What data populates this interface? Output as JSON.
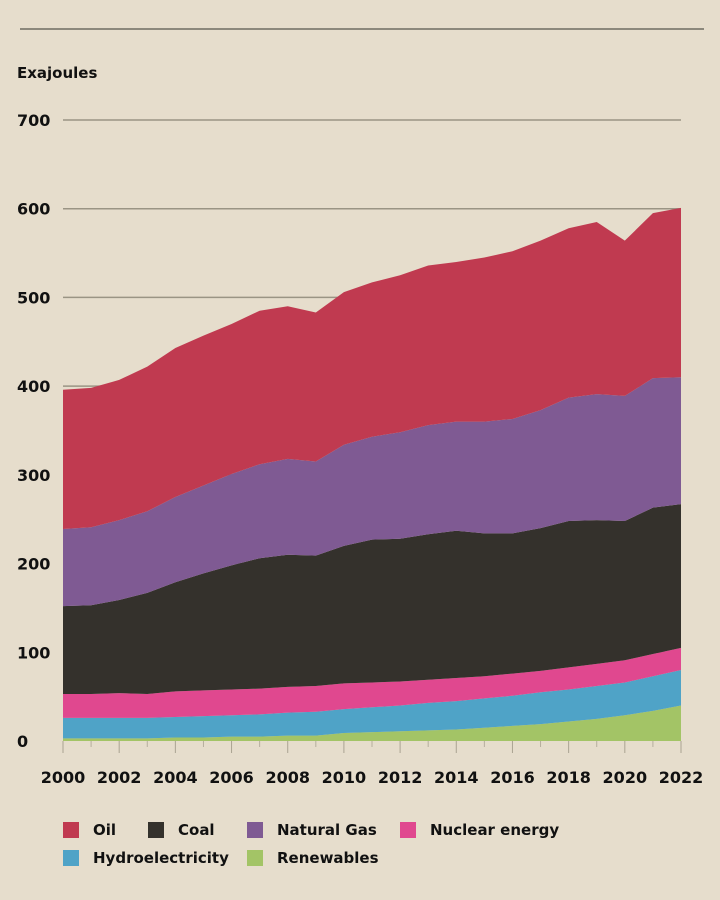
{
  "chart_data": {
    "type": "area",
    "stacked": true,
    "title": "",
    "xlabel": "",
    "ylabel": "Exajoules",
    "ylim": [
      0,
      700
    ],
    "yticks": [
      0,
      100,
      200,
      300,
      400,
      500,
      600,
      700
    ],
    "xticks": [
      2000,
      2002,
      2004,
      2006,
      2008,
      2010,
      2012,
      2014,
      2016,
      2018,
      2020,
      2022
    ],
    "grid": true,
    "legend_placement": "bottom",
    "x": [
      2000,
      2001,
      2002,
      2003,
      2004,
      2005,
      2006,
      2007,
      2008,
      2009,
      2010,
      2011,
      2012,
      2013,
      2014,
      2015,
      2016,
      2017,
      2018,
      2019,
      2020,
      2021,
      2022
    ],
    "series": [
      {
        "name": "Renewables",
        "color": "#a3c466",
        "values": [
          3,
          3,
          3,
          3,
          4,
          4,
          5,
          5,
          6,
          6,
          9,
          10,
          11,
          12,
          13,
          15,
          17,
          19,
          22,
          25,
          29,
          34,
          40
        ]
      },
      {
        "name": "Hydroelectricity",
        "color": "#4fa3c7",
        "values": [
          23,
          23,
          23,
          23,
          23,
          24,
          24,
          25,
          26,
          27,
          27,
          28,
          29,
          31,
          32,
          33,
          34,
          36,
          36,
          37,
          37,
          39,
          40
        ]
      },
      {
        "name": "Nuclear energy",
        "color": "#e0488f",
        "values": [
          27,
          27,
          28,
          27,
          29,
          29,
          29,
          29,
          29,
          29,
          29,
          28,
          27,
          26,
          26,
          25,
          25,
          24,
          25,
          25,
          25,
          25,
          25
        ]
      },
      {
        "name": "Coal",
        "color": "#34312c",
        "values": [
          99,
          100,
          105,
          114,
          123,
          132,
          140,
          147,
          149,
          147,
          155,
          161,
          161,
          164,
          166,
          161,
          158,
          161,
          165,
          162,
          157,
          165,
          162
        ]
      },
      {
        "name": "Natural Gas",
        "color": "#7f5a93",
        "values": [
          87,
          88,
          90,
          92,
          96,
          99,
          103,
          106,
          108,
          106,
          114,
          116,
          120,
          123,
          123,
          126,
          129,
          133,
          139,
          142,
          141,
          146,
          143
        ]
      },
      {
        "name": "Oil",
        "color": "#c03a50",
        "values": [
          157,
          157,
          158,
          163,
          168,
          169,
          169,
          173,
          172,
          168,
          172,
          174,
          177,
          180,
          180,
          185,
          189,
          191,
          191,
          194,
          175,
          186,
          191
        ]
      }
    ],
    "legend_order": [
      "Oil",
      "Coal",
      "Natural Gas",
      "Nuclear energy",
      "Hydroelectricity",
      "Renewables"
    ]
  }
}
